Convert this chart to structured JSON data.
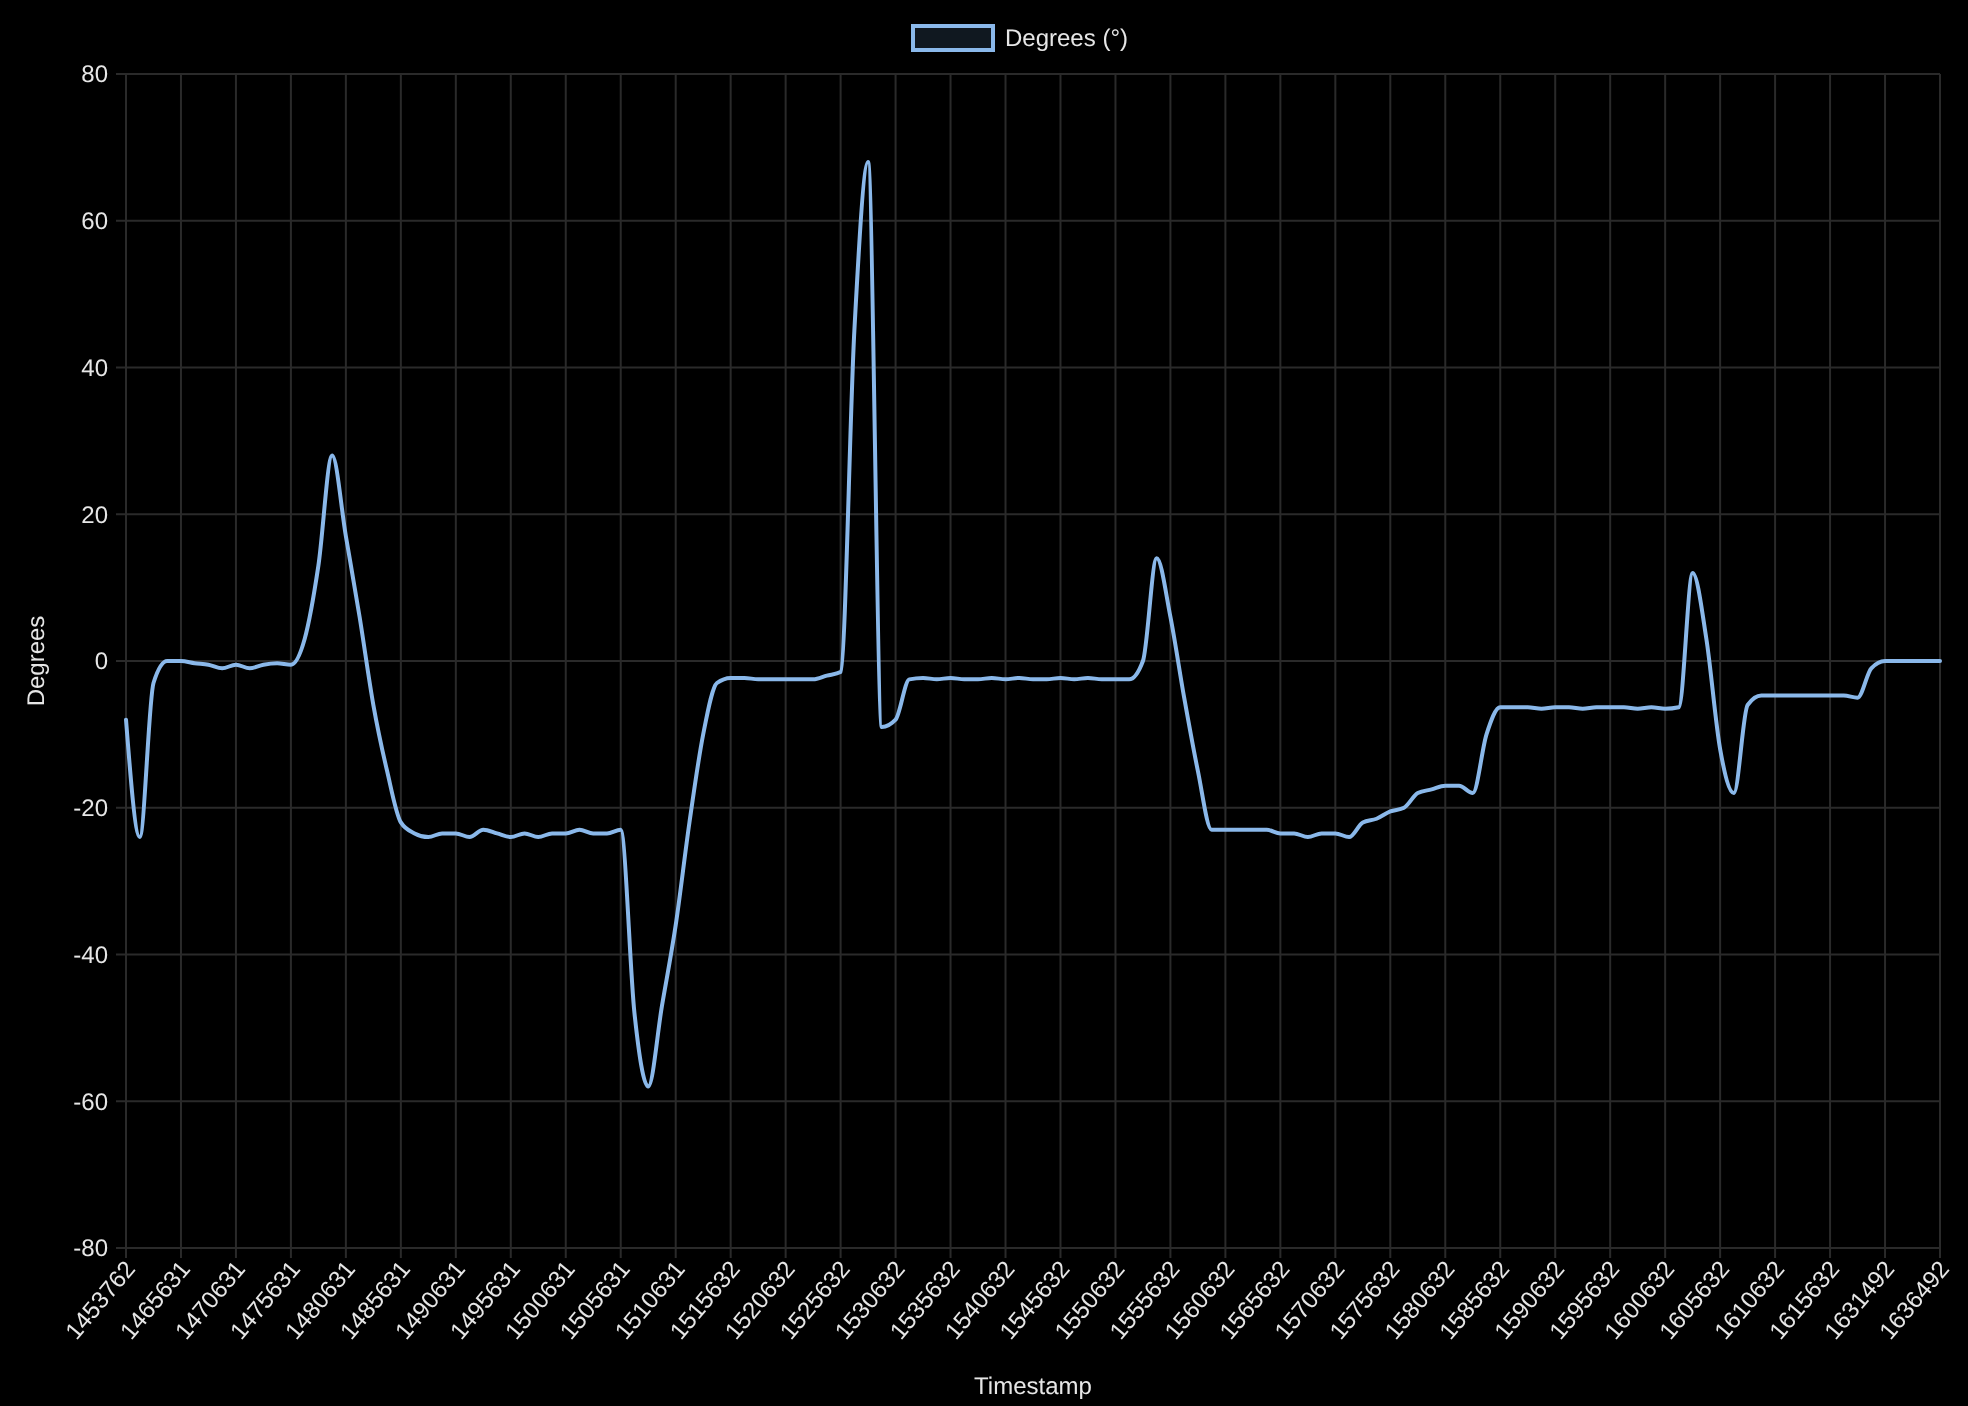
{
  "chart_data": {
    "type": "line",
    "xlabel": "Timestamp",
    "ylabel": "Degrees",
    "categories": [
      "1453762",
      null,
      null,
      null,
      "1465631",
      null,
      null,
      null,
      "1470631",
      null,
      null,
      null,
      "1475631",
      null,
      null,
      null,
      "1480631",
      null,
      null,
      null,
      "1485631",
      null,
      null,
      null,
      "1490631",
      null,
      null,
      null,
      "1495631",
      null,
      null,
      null,
      "1500631",
      null,
      null,
      null,
      "1505631",
      null,
      null,
      null,
      "1510631",
      null,
      null,
      null,
      "1515632",
      null,
      null,
      null,
      "1520632",
      null,
      null,
      null,
      "1525632",
      null,
      null,
      null,
      "1530632",
      null,
      null,
      null,
      "1535632",
      null,
      null,
      null,
      "1540632",
      null,
      null,
      null,
      "1545632",
      null,
      null,
      null,
      "1550632",
      null,
      null,
      null,
      "1555632",
      null,
      null,
      null,
      "1560632",
      null,
      null,
      null,
      "1565632",
      null,
      null,
      null,
      "1570632",
      null,
      null,
      null,
      "1575632",
      null,
      null,
      null,
      "1580632",
      null,
      null,
      null,
      "1585632",
      null,
      null,
      null,
      "1590632",
      null,
      null,
      null,
      "1595632",
      null,
      null,
      null,
      "1600632",
      null,
      null,
      null,
      "1605632",
      null,
      null,
      null,
      "1610632",
      null,
      null,
      null,
      "1615632",
      null,
      null,
      null,
      "1631492",
      null,
      null,
      null,
      "1636492"
    ],
    "series": [
      {
        "name": "Degrees (°)",
        "color": "#8ab8ea",
        "values": [
          -8,
          -24,
          -3,
          0,
          0,
          -0.3,
          -0.5,
          -1,
          -0.5,
          -1,
          -0.5,
          -0.3,
          -0.5,
          3,
          13,
          28,
          17,
          6,
          -6,
          -15,
          -22,
          -23.5,
          -24,
          -23.5,
          -23.5,
          -24,
          -23,
          -23.5,
          -24,
          -23.5,
          -24,
          -23.5,
          -23.5,
          -23,
          -23.5,
          -23.5,
          -23,
          -48,
          -58,
          -47,
          -36,
          -22,
          -10,
          -3,
          -2.3,
          -2.3,
          -2.5,
          -2.5,
          -2.5,
          -2.5,
          -2.5,
          -2,
          -1.5,
          45,
          68,
          -9,
          -8,
          -2.5,
          -2.3,
          -2.5,
          -2.3,
          -2.5,
          -2.5,
          -2.3,
          -2.5,
          -2.3,
          -2.5,
          -2.5,
          -2.3,
          -2.5,
          -2.3,
          -2.5,
          -2.5,
          -2.5,
          0,
          14,
          6,
          -5,
          -15,
          -23,
          -23,
          -23,
          -23,
          -23,
          -23.5,
          -23.5,
          -24,
          -23.5,
          -23.5,
          -24,
          -22,
          -21.5,
          -20.5,
          -20,
          -18,
          -17.5,
          -17,
          -17,
          -18,
          -10,
          -6.3,
          -6.3,
          -6.3,
          -6.5,
          -6.3,
          -6.3,
          -6.5,
          -6.3,
          -6.3,
          -6.3,
          -6.5,
          -6.3,
          -6.5,
          -6.3,
          12,
          3,
          -12,
          -18,
          -6,
          -4.7,
          -4.7,
          -4.7,
          -4.7,
          -4.7,
          -4.7,
          -4.7,
          -5,
          -1,
          0,
          0,
          0,
          0,
          0
        ]
      }
    ],
    "ylim": [
      -80,
      80
    ],
    "yticks": [
      -80,
      -60,
      -40,
      -20,
      0,
      20,
      40,
      60,
      80
    ],
    "grid": true,
    "legend": "top",
    "marker": "none",
    "line_style": "solid"
  }
}
